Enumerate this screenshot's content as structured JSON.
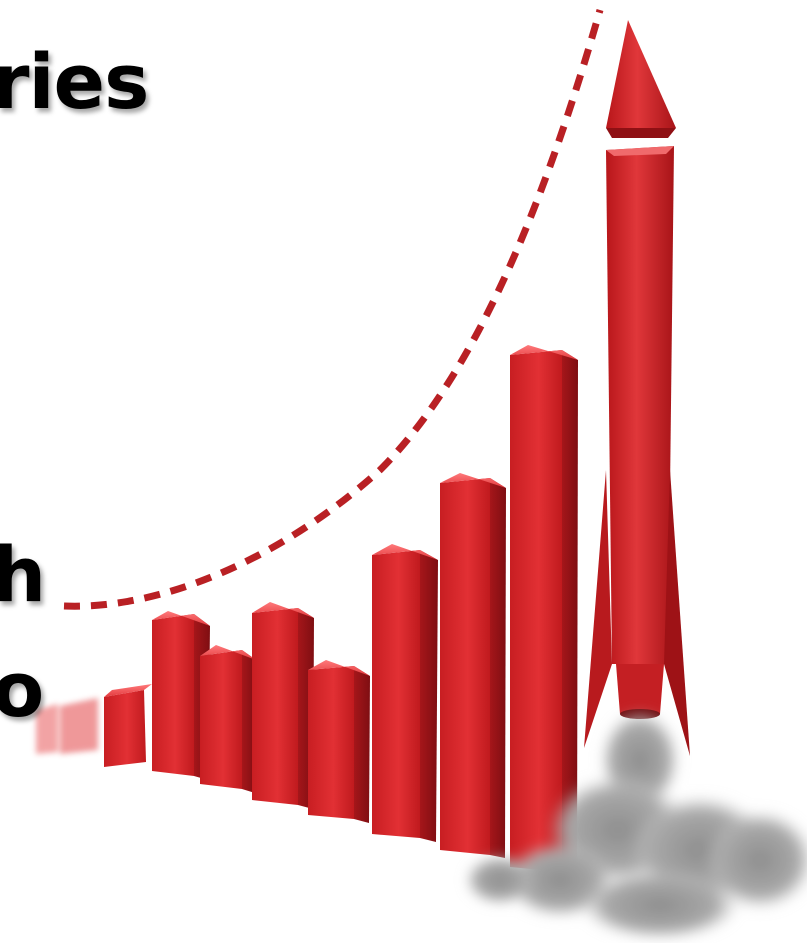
{
  "slide": {
    "text_fragments": [
      "ries",
      "h",
      "o"
    ],
    "illustration": {
      "subject": "rocket-icon",
      "bar_count": 10,
      "bar_color": "#d42a2c",
      "trend_line_color": "#b92024",
      "smoke_color": "#9a9a9a"
    }
  }
}
